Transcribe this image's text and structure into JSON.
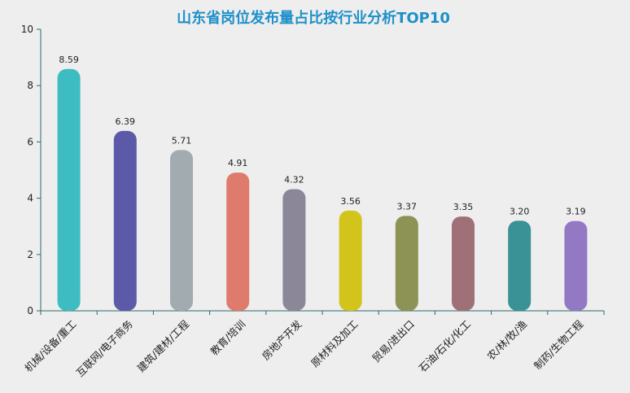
{
  "chart_data": {
    "type": "bar",
    "title": "山东省岗位发布量占比按行业分析TOP10",
    "categories": [
      "机械/设备/重工",
      "互联网/电子商务",
      "建筑/建材/工程",
      "教育/培训",
      "房地产开发",
      "原材料及加工",
      "贸易/进出口",
      "石油/石化/化工",
      "农/林/牧/渔",
      "制药/生物工程"
    ],
    "values": [
      8.59,
      6.39,
      5.71,
      4.91,
      4.32,
      3.56,
      3.37,
      3.35,
      3.2,
      3.19
    ],
    "value_labels": [
      "8.59",
      "6.39",
      "5.71",
      "4.91",
      "4.32",
      "3.56",
      "3.37",
      "3.35",
      "3.20",
      "3.19"
    ],
    "ylim": [
      0,
      10
    ],
    "yticks": [
      "0",
      "2",
      "4",
      "6",
      "8",
      "10"
    ],
    "colors": [
      "#3dbdc1",
      "#5c5aa8",
      "#a2abb0",
      "#df7b6c",
      "#8b8799",
      "#d3c41c",
      "#8c9355",
      "#a07078",
      "#3a9296",
      "#9379c4"
    ],
    "axis_color": "#2a6a6a",
    "grid": false,
    "legend": "none"
  }
}
